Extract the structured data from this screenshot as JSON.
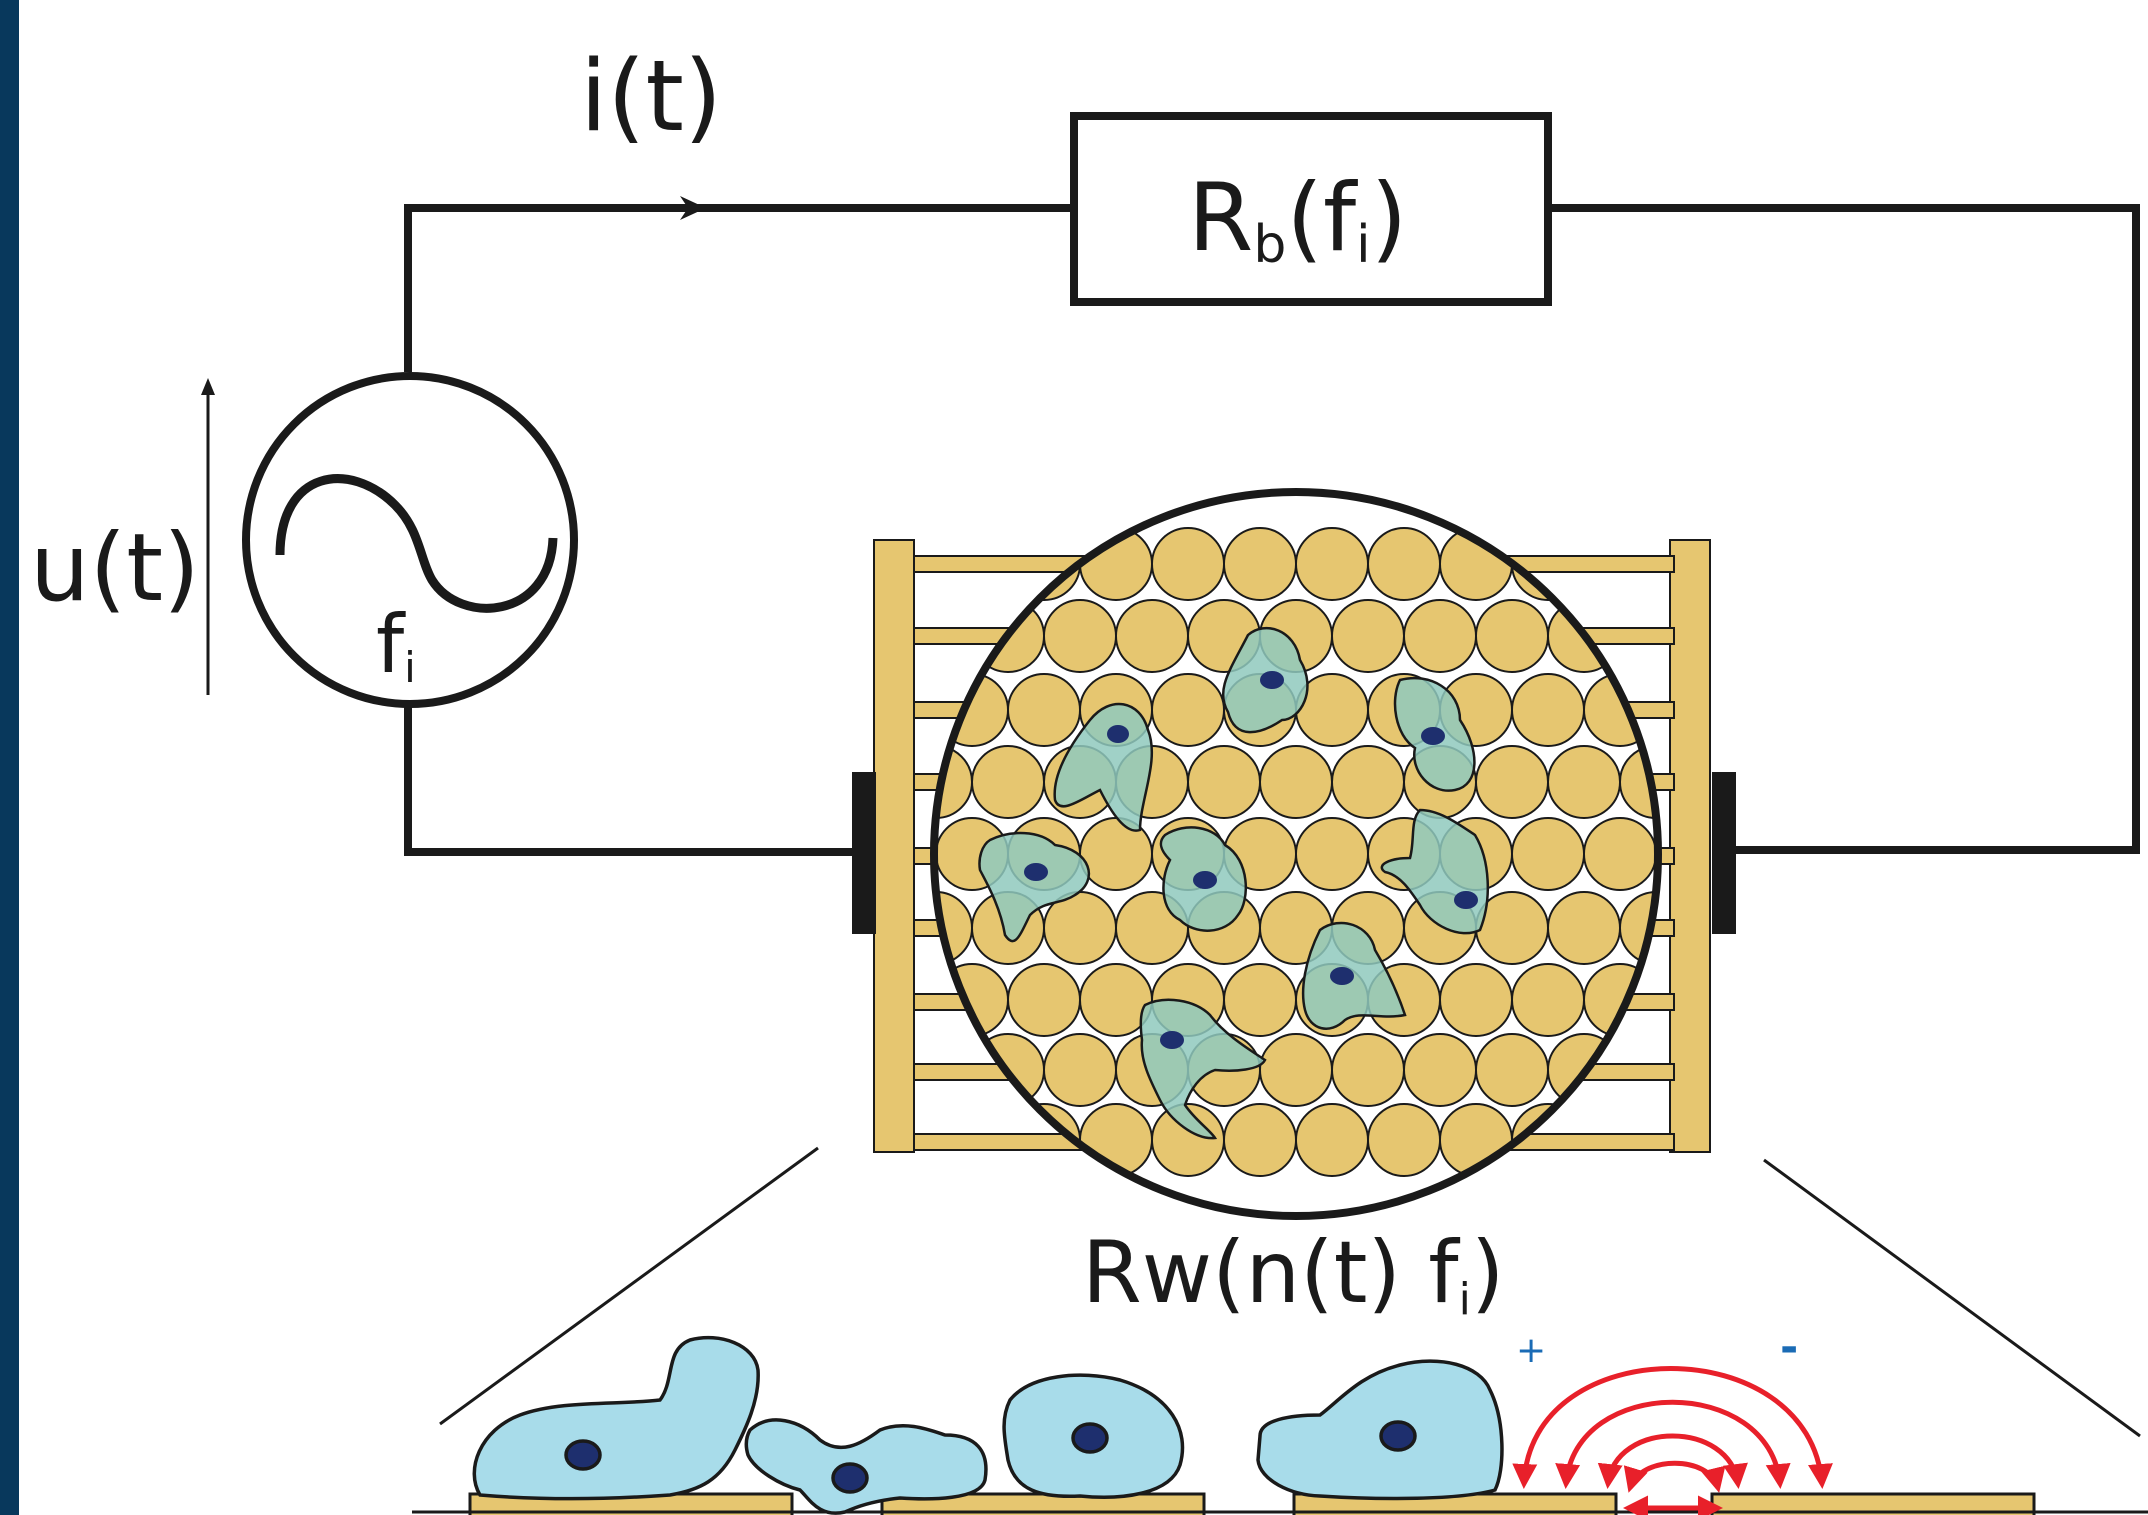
{
  "labels": {
    "current": "i(t)",
    "voltage": "u(t)",
    "source_freq_base": "f",
    "source_freq_sub": "i",
    "rb_base": "R",
    "rb_sub": "b",
    "rb_open": "(f",
    "rb_sub2": "i",
    "rb_close": ")",
    "rw_text": "Rw(n(t) f",
    "rw_sub": "i",
    "rw_close": ")",
    "plus": "+",
    "minus": "-"
  },
  "colors": {
    "frame": "#08385c",
    "wire": "#1a1a1a",
    "gold": "#e6c670",
    "cell_light": "#a8dcea",
    "cell_green": "#8fc9bd",
    "nucleus": "#1e2f6e",
    "field": "#e8202a",
    "sign": "#1a6bb5"
  },
  "icons": {
    "source": "ac-voltage-source-icon",
    "field": "electric-field-arrows-icon"
  }
}
